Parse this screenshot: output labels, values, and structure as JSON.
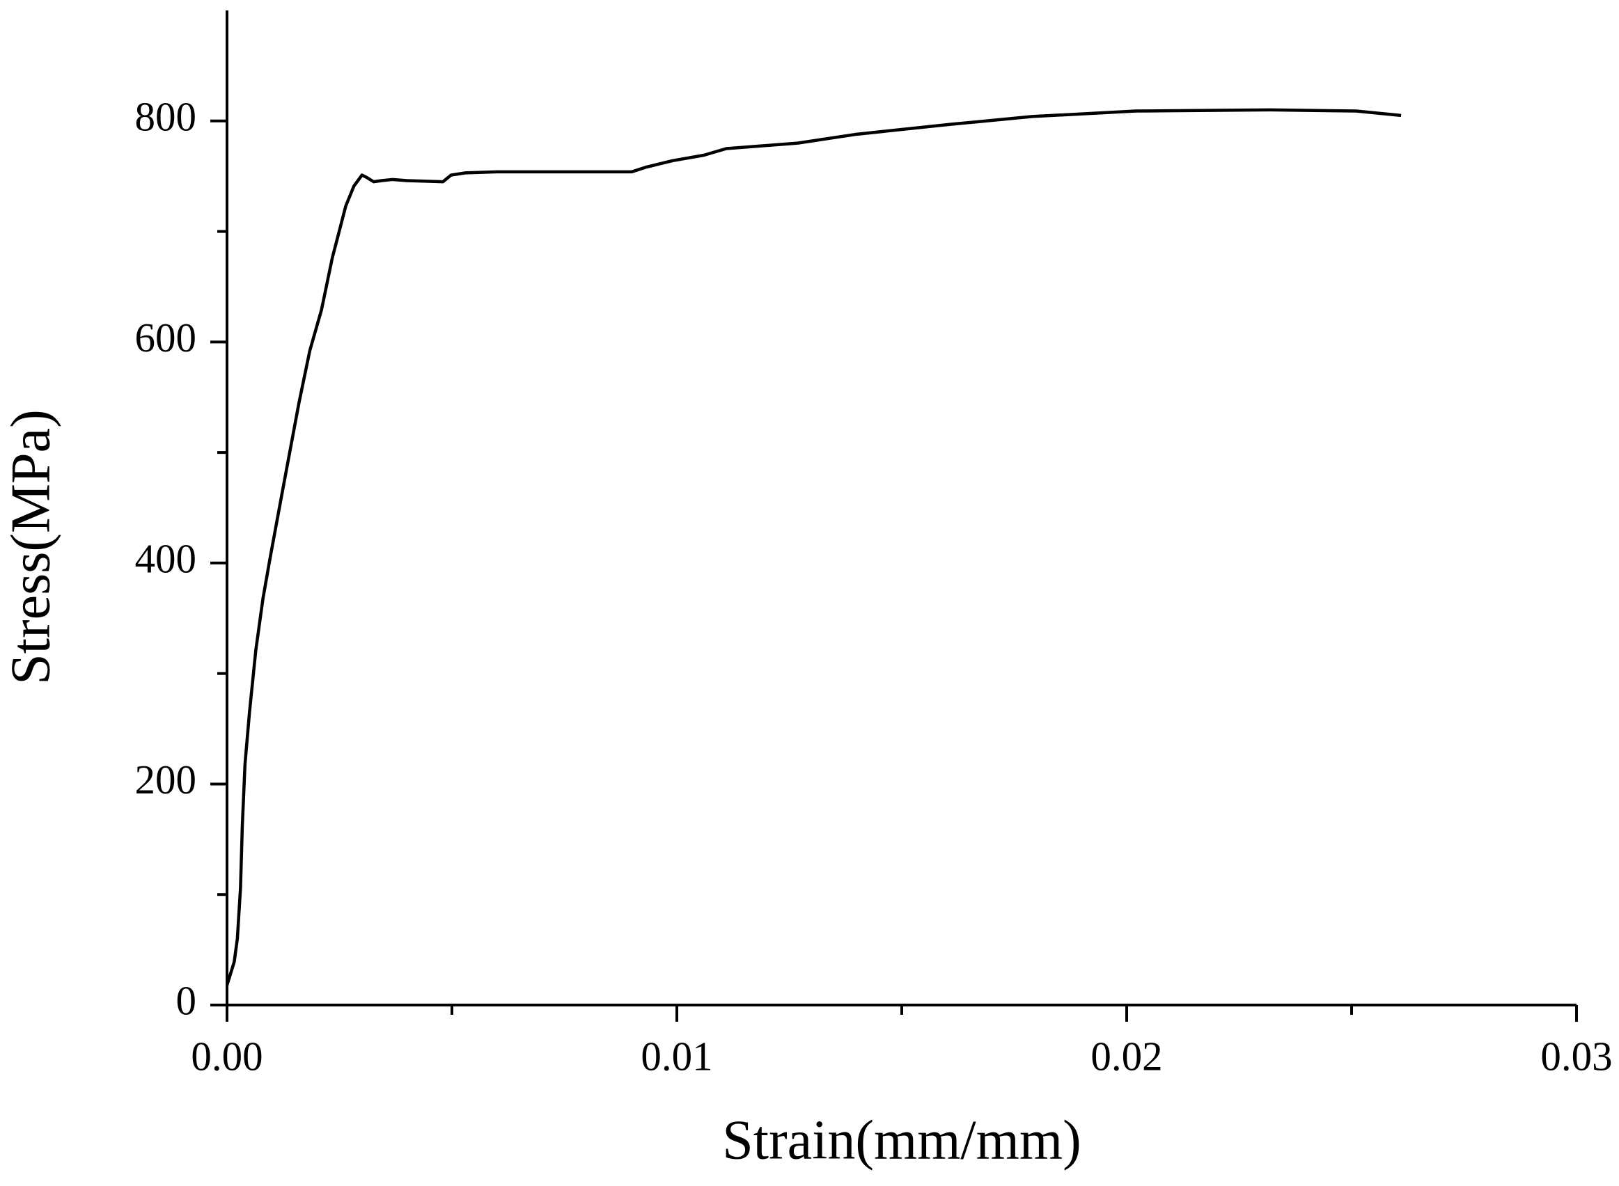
{
  "chart_data": {
    "type": "line",
    "x_label": "Strain(mm/mm)",
    "y_label": "Stress(MPa)",
    "x": [
      0,
      0.00016,
      0.00023,
      0.0003,
      0.00034,
      0.0004,
      0.0005,
      0.00064,
      0.0008,
      0.00096,
      0.00126,
      0.0016,
      0.00184,
      0.0021,
      0.00234,
      0.00264,
      0.00282,
      0.003,
      0.0031,
      0.00326,
      0.00344,
      0.00367,
      0.004,
      0.0048,
      0.00498,
      0.0053,
      0.006,
      0.0073,
      0.009,
      0.0093,
      0.0099,
      0.0106,
      0.0111,
      0.0127,
      0.014,
      0.0161,
      0.0179,
      0.0202,
      0.0232,
      0.0251,
      0.0261
    ],
    "series": [
      {
        "color": "#000000",
        "values": [
          18,
          39,
          60,
          106,
          162,
          218,
          265,
          321,
          368,
          405,
          471,
          545,
          592,
          629,
          676,
          723,
          741,
          751,
          749,
          745,
          746,
          747,
          746,
          745,
          751,
          753,
          754,
          754,
          754,
          758,
          764,
          769,
          775,
          780,
          788,
          797,
          804,
          809,
          810,
          809,
          805
        ]
      }
    ],
    "xlim": [
      0,
      0.03
    ],
    "ylim": [
      0,
      900
    ],
    "xticks": [
      {
        "value": 0,
        "label": "0.00"
      },
      0.01,
      0.02,
      0.03
    ],
    "yticks": [
      0,
      200,
      400,
      600,
      800
    ],
    "xminorticks": [
      0.005,
      0.015,
      0.025
    ],
    "yminorticks": [
      100,
      300,
      500,
      700
    ],
    "grid": false
  }
}
